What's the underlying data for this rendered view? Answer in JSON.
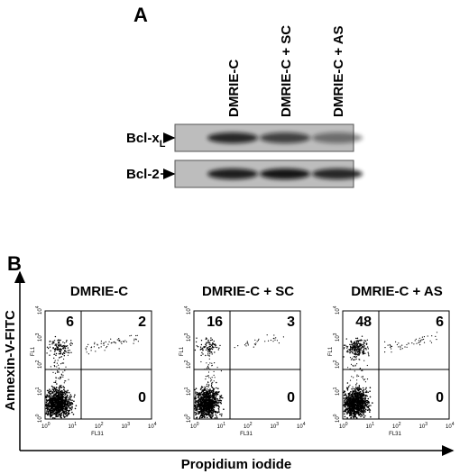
{
  "panel_a": {
    "label": "A",
    "lanes": [
      "DMRIE-C",
      "DMRIE-C + SC",
      "DMRIE-C + AS"
    ],
    "bands": [
      {
        "name": "Bcl-x",
        "subscript": "L"
      },
      {
        "name": "Bcl-2"
      }
    ]
  },
  "panel_b": {
    "label": "B",
    "y_axis_label": "Annexin-V-FITC",
    "x_axis_label": "Propidium iodide",
    "plot_axes": {
      "x_channel": "FL31",
      "y_channel": "FL1",
      "tick_base": "10",
      "tick_exponents": [
        "0",
        "1",
        "2",
        "3",
        "4"
      ]
    },
    "plots": [
      {
        "title": "DMRIE-C",
        "upper_left": "6",
        "upper_right": "2",
        "lower_right": "0"
      },
      {
        "title": "DMRIE-C + SC",
        "upper_left": "16",
        "upper_right": "3",
        "lower_right": "0"
      },
      {
        "title": "DMRIE-C + AS",
        "upper_left": "48",
        "upper_right": "6",
        "lower_right": "0"
      }
    ]
  }
}
